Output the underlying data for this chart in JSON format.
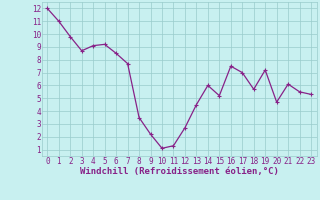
{
  "x": [
    0,
    1,
    2,
    3,
    4,
    5,
    6,
    7,
    8,
    9,
    10,
    11,
    12,
    13,
    14,
    15,
    16,
    17,
    18,
    19,
    20,
    21,
    22,
    23
  ],
  "y": [
    12,
    11,
    9.8,
    8.7,
    9.1,
    9.2,
    8.5,
    7.7,
    3.5,
    2.2,
    1.1,
    1.3,
    2.7,
    4.5,
    6.0,
    5.2,
    7.5,
    7.0,
    5.7,
    7.2,
    4.7,
    6.1,
    5.5,
    5.3
  ],
  "line_color": "#882288",
  "marker": "+",
  "bg_color": "#c8f0f0",
  "grid_color": "#99cccc",
  "xlabel": "Windchill (Refroidissement éolien,°C)",
  "ylabel_ticks": [
    1,
    2,
    3,
    4,
    5,
    6,
    7,
    8,
    9,
    10,
    11,
    12
  ],
  "xlim": [
    -0.5,
    23.5
  ],
  "ylim": [
    0.5,
    12.5
  ],
  "text_color": "#882288",
  "font_size": 5.5,
  "xlabel_font_size": 6.5,
  "marker_size": 3,
  "linewidth": 0.9
}
